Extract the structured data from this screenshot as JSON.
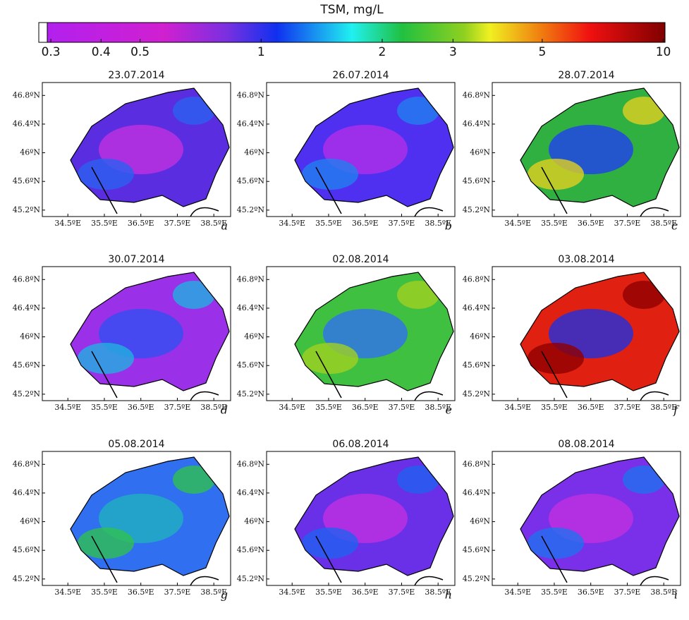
{
  "colorbar": {
    "title": "TSM, mg/L",
    "scale": "log",
    "lim": [
      0.28,
      10.1
    ],
    "ticks": [
      0.3,
      0.4,
      0.5,
      1,
      2,
      3,
      5,
      10
    ]
  },
  "map_axes": {
    "xlim": [
      33.8,
      38.96
    ],
    "ylim": [
      45.11,
      46.98
    ],
    "xticks": [
      {
        "value": 34.5,
        "label": "34.5ºE"
      },
      {
        "value": 35.5,
        "label": "35.5ºE"
      },
      {
        "value": 36.5,
        "label": "36.5ºE"
      },
      {
        "value": 37.5,
        "label": "37.5ºE"
      },
      {
        "value": 38.5,
        "label": "38.5ºE"
      }
    ],
    "yticks": [
      {
        "value": 45.2,
        "label": "45.2ºN"
      },
      {
        "value": 45.6,
        "label": "45.6ºN"
      },
      {
        "value": 46,
        "label": "46ºN"
      },
      {
        "value": 46.4,
        "label": "46.4ºN"
      },
      {
        "value": 46.8,
        "label": "46.8ºN"
      }
    ]
  },
  "panels": [
    {
      "title": "23.07.2014",
      "letter": "a"
    },
    {
      "title": "26.07.2014",
      "letter": "b"
    },
    {
      "title": "28.07.2014",
      "letter": "c"
    },
    {
      "title": "30.07.2014",
      "letter": "d"
    },
    {
      "title": "02.08.2014",
      "letter": "e"
    },
    {
      "title": "03.08.2014",
      "letter": "f"
    },
    {
      "title": "05.08.2014",
      "letter": "g"
    },
    {
      "title": "06.08.2014",
      "letter": "h"
    },
    {
      "title": "08.08.2014",
      "letter": "i"
    }
  ]
}
